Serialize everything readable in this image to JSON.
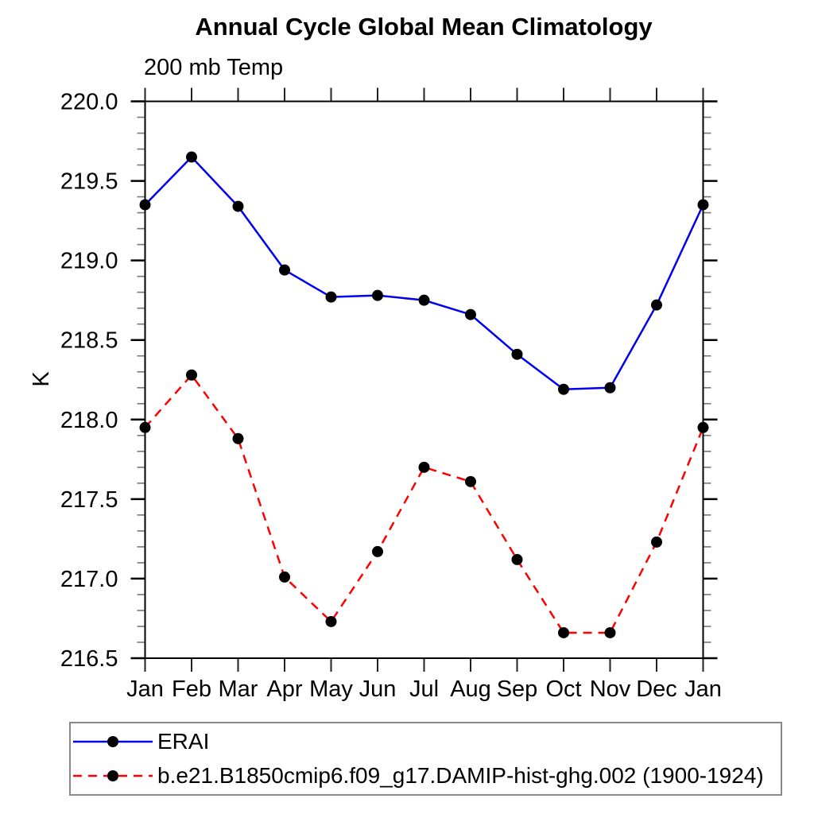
{
  "chart_data": {
    "type": "line",
    "title": "Annual Cycle Global Mean Climatology",
    "left_subtitle": "200 mb Temp",
    "ylabel": "K",
    "xlabel": "",
    "categories": [
      "Jan",
      "Feb",
      "Mar",
      "Apr",
      "May",
      "Jun",
      "Jul",
      "Aug",
      "Sep",
      "Oct",
      "Nov",
      "Dec",
      "Jan"
    ],
    "ylim": [
      216.5,
      220.0
    ],
    "grid": false,
    "legend_position": "bottom-left-box",
    "yaxis": {
      "major_tick_step": 0.5,
      "minor_tick_step": 0.1,
      "major_tick_labels": [
        "216.5",
        "217.0",
        "217.5",
        "218.0",
        "218.5",
        "219.0",
        "219.5",
        "220.0"
      ]
    },
    "series": [
      {
        "name": "ERAI",
        "color": "#0000ee",
        "line_style": "solid",
        "marker": "filled-circle",
        "marker_color": "#000000",
        "values": [
          219.35,
          219.65,
          219.34,
          218.94,
          218.77,
          218.78,
          218.75,
          218.66,
          218.41,
          218.19,
          218.2,
          218.72,
          219.35
        ]
      },
      {
        "name": "b.e21.B1850cmip6.f09_g17.DAMIP-hist-ghg.002 (1900-1924)",
        "color": "#ff0000",
        "line_style": "dashed",
        "marker": "filled-circle",
        "marker_color": "#000000",
        "values": [
          217.95,
          218.28,
          217.88,
          217.01,
          216.73,
          217.17,
          217.7,
          217.61,
          217.12,
          216.66,
          216.66,
          217.23,
          217.95
        ]
      }
    ],
    "colors": {
      "axis": "#000000",
      "major_tick": "#000000",
      "minor_tick": "#777777",
      "month_tick": "#222222",
      "tick_label": "#000000",
      "legend_border": "#888888"
    }
  }
}
